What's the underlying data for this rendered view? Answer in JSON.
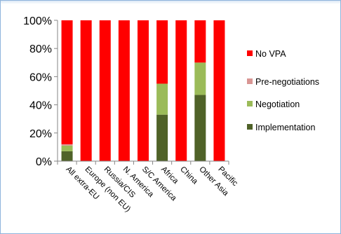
{
  "chart_data": {
    "type": "bar",
    "stacked": true,
    "normalized": true,
    "categories": [
      "All extra-EU",
      "Europe (non EU)",
      "Russia/CIS",
      "N. America",
      "S/C America",
      "Africa",
      "China",
      "Other Asia",
      "Pacific"
    ],
    "series": [
      {
        "name": "Implementation",
        "color": "#4f6228",
        "values": [
          7,
          0,
          0,
          0,
          0,
          33,
          0,
          47,
          0
        ]
      },
      {
        "name": "Negotiation",
        "color": "#9bbb59",
        "values": [
          4,
          0,
          0,
          0,
          0,
          22,
          0,
          23,
          0
        ]
      },
      {
        "name": "Pre-negotiations",
        "color": "#d99694",
        "values": [
          1,
          0,
          0,
          0,
          0,
          0,
          0,
          0,
          0
        ]
      },
      {
        "name": "No VPA",
        "color": "#ff0000",
        "values": [
          88,
          100,
          100,
          100,
          100,
          45,
          100,
          30,
          100
        ]
      }
    ],
    "legend_order": [
      "No VPA",
      "Pre-negotiations",
      "Negotiation",
      "Implementation"
    ],
    "y_ticks": [
      "0%",
      "20%",
      "40%",
      "60%",
      "80%",
      "100%"
    ],
    "ylim": [
      0,
      100
    ],
    "legend_position": "right",
    "grid": false
  }
}
